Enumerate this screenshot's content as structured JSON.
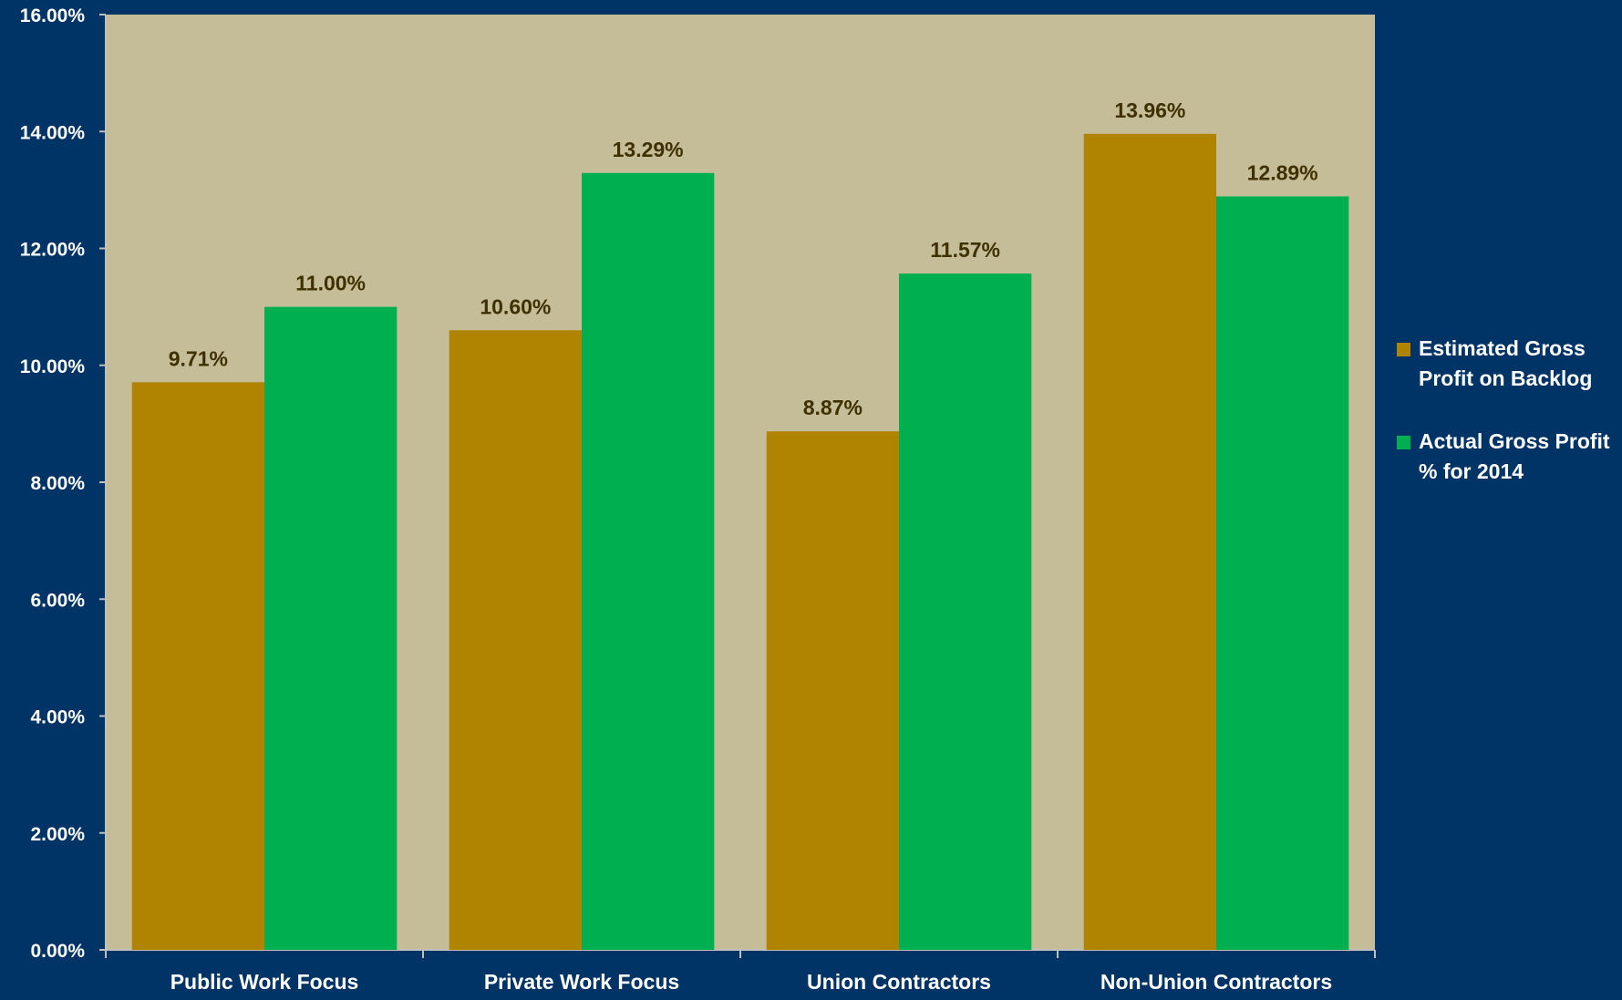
{
  "chart_data": {
    "type": "bar",
    "title": "",
    "xlabel": "",
    "ylabel": "",
    "categories": [
      "Public Work Focus",
      "Private Work Focus",
      "Union Contractors",
      "Non-Union Contractors"
    ],
    "series": [
      {
        "name": "Estimated Gross Profit on Backlog",
        "values": [
          9.71,
          10.6,
          8.87,
          13.96
        ],
        "labels": [
          "9.71%",
          "10.60%",
          "8.87%",
          "13.96%"
        ],
        "color": "#B08300"
      },
      {
        "name": "Actual Gross Profit % for 2014",
        "values": [
          11.0,
          13.29,
          11.57,
          12.89
        ],
        "labels": [
          "11.00%",
          "13.29%",
          "11.57%",
          "12.89%"
        ],
        "color": "#00B050"
      }
    ],
    "ylim": [
      0,
      16
    ],
    "yticks": [
      "0.00%",
      "2.00%",
      "4.00%",
      "6.00%",
      "8.00%",
      "10.00%",
      "12.00%",
      "14.00%",
      "16.00%"
    ],
    "grid": false,
    "legend_position": "right",
    "plot_background": "#C4BD97",
    "page_background": "#003366"
  }
}
